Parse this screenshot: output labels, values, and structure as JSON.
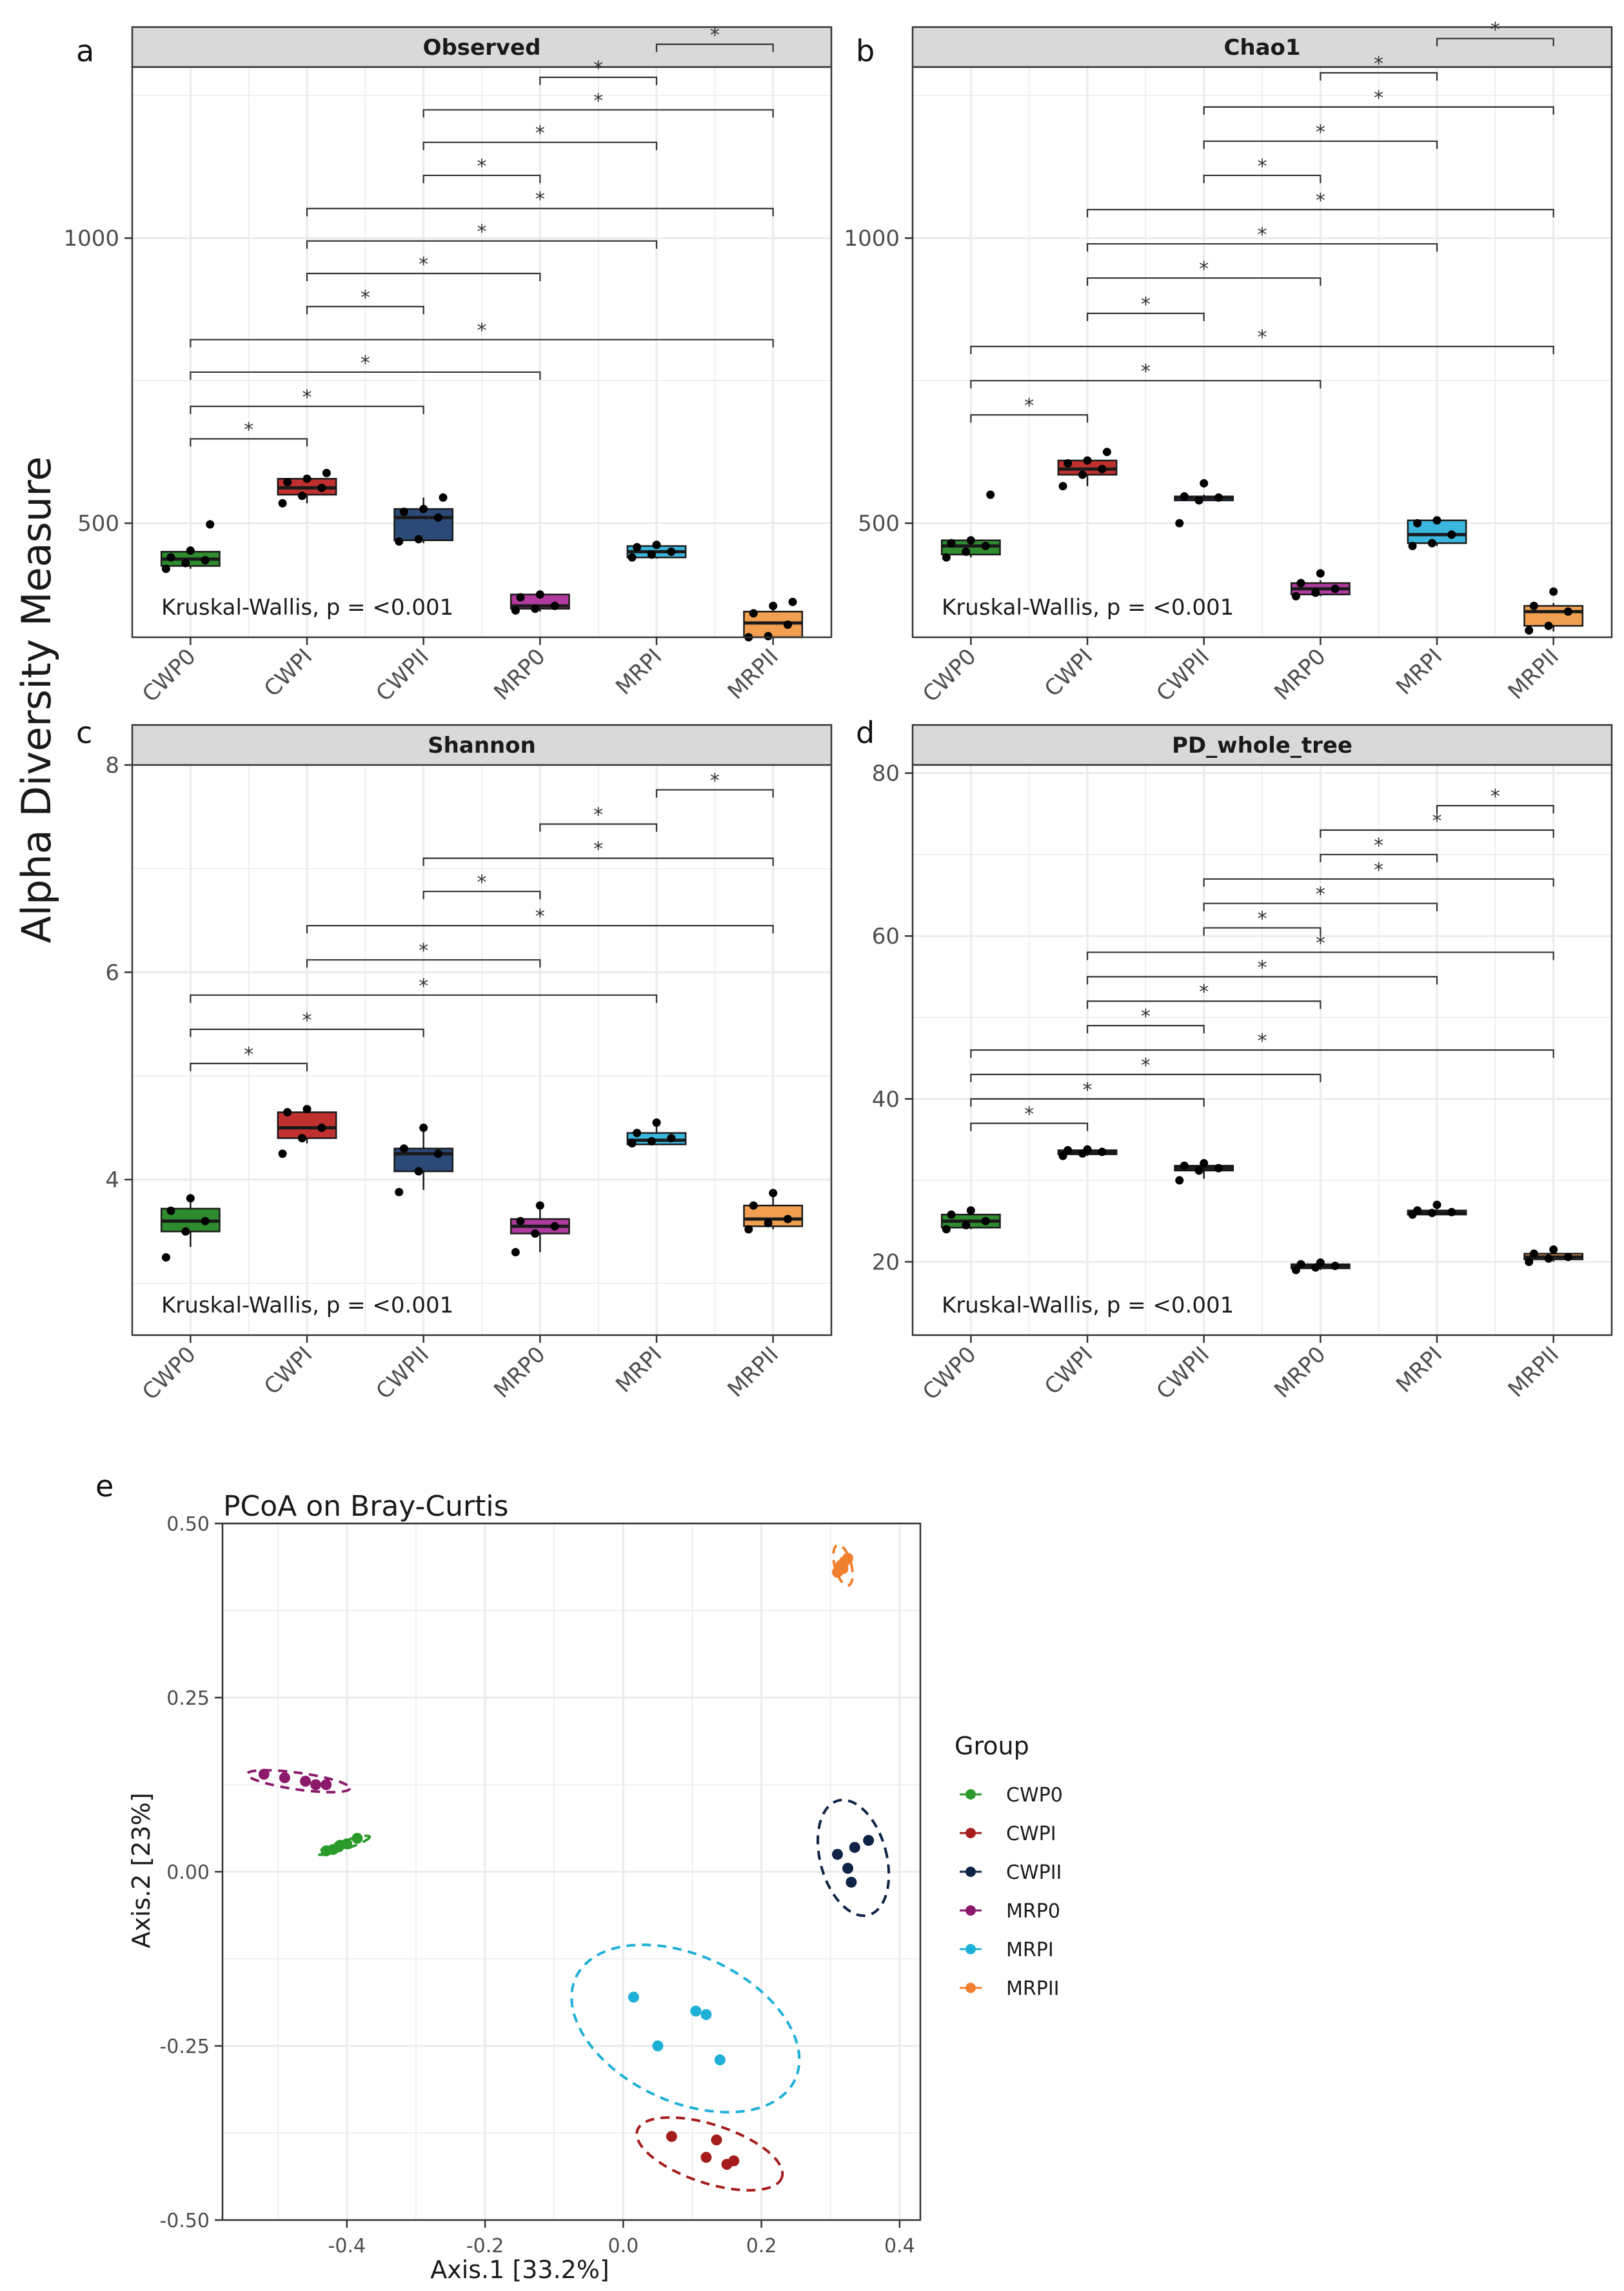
{
  "y_axis_title": "Alpha Diversity Measure",
  "groups": [
    "CWP0",
    "CWPI",
    "CWPII",
    "MRP0",
    "MRPI",
    "MRPII"
  ],
  "colors": {
    "CWP0": "#2e8b2e",
    "CWPI": "#c0302f",
    "CWPII": "#2c4a78",
    "MRP0": "#b03a9e",
    "MRPI": "#3bb6dd",
    "MRPII": "#f0a050",
    "CWPII_points": "#0f2346",
    "MRP0_points": "#8b1a6b",
    "CWPI_points": "#a51c1c",
    "CWP0_points": "#2a9a2a",
    "MRPI_points": "#1fb0d8",
    "MRPII_points": "#f07f2e",
    "strip_bg": "#d9d9d9",
    "grid": "#ebebeb"
  },
  "chart_data": [
    {
      "type": "box",
      "panel_letter": "a",
      "title": "Observed",
      "annotation": "Kruskal-Wallis, p = <0.001",
      "categories": [
        "CWP0",
        "CWPI",
        "CWPII",
        "MRP0",
        "MRPI",
        "MRPII"
      ],
      "ylim": [
        300,
        1300
      ],
      "yticks": [
        500,
        1000
      ],
      "boxes": [
        {
          "group": "CWP0",
          "q1": 425,
          "median": 437,
          "q3": 450,
          "min": 420,
          "max": 455,
          "points": [
            420,
            430,
            435,
            440,
            452,
            498
          ]
        },
        {
          "group": "CWPI",
          "q1": 550,
          "median": 562,
          "q3": 578,
          "min": 535,
          "max": 580,
          "points": [
            535,
            548,
            562,
            572,
            578,
            588
          ]
        },
        {
          "group": "CWPII",
          "q1": 470,
          "median": 510,
          "q3": 525,
          "min": 465,
          "max": 545,
          "points": [
            468,
            472,
            510,
            520,
            525,
            545
          ]
        },
        {
          "group": "MRP0",
          "q1": 350,
          "median": 355,
          "q3": 375,
          "min": 345,
          "max": 377,
          "points": [
            347,
            350,
            355,
            370,
            375
          ]
        },
        {
          "group": "MRPI",
          "q1": 440,
          "median": 450,
          "q3": 460,
          "min": 438,
          "max": 462,
          "points": [
            440,
            445,
            450,
            458,
            462
          ]
        },
        {
          "group": "MRPII",
          "q1": 300,
          "median": 325,
          "q3": 345,
          "min": 300,
          "max": 362,
          "points": [
            300,
            302,
            322,
            342,
            355,
            362
          ]
        }
      ],
      "brackets": [
        {
          "from": 0,
          "to": 1,
          "y": 648,
          "label": "*"
        },
        {
          "from": 0,
          "to": 2,
          "y": 705,
          "label": "*"
        },
        {
          "from": 0,
          "to": 3,
          "y": 765,
          "label": "*"
        },
        {
          "from": 0,
          "to": 5,
          "y": 822,
          "label": "*"
        },
        {
          "from": 1,
          "to": 2,
          "y": 880,
          "label": "*"
        },
        {
          "from": 1,
          "to": 3,
          "y": 938,
          "label": "*"
        },
        {
          "from": 1,
          "to": 4,
          "y": 995,
          "label": "*"
        },
        {
          "from": 1,
          "to": 5,
          "y": 1052,
          "label": "*"
        },
        {
          "from": 2,
          "to": 3,
          "y": 1110,
          "label": "*"
        },
        {
          "from": 2,
          "to": 4,
          "y": 1168,
          "label": "*"
        },
        {
          "from": 2,
          "to": 5,
          "y": 1225,
          "label": "*"
        },
        {
          "from": 3,
          "to": 4,
          "y": 1282,
          "label": "*"
        },
        {
          "from": 4,
          "to": 5,
          "y": 1340,
          "label": "*"
        }
      ]
    },
    {
      "type": "box",
      "panel_letter": "b",
      "title": "Chao1",
      "annotation": "Kruskal-Wallis, p = <0.001",
      "categories": [
        "CWP0",
        "CWPI",
        "CWPII",
        "MRP0",
        "MRPI",
        "MRPII"
      ],
      "ylim": [
        300,
        1300
      ],
      "yticks": [
        500,
        1000
      ],
      "boxes": [
        {
          "group": "CWP0",
          "q1": 445,
          "median": 460,
          "q3": 470,
          "min": 440,
          "max": 475,
          "points": [
            440,
            450,
            460,
            465,
            470,
            550
          ]
        },
        {
          "group": "CWPI",
          "q1": 585,
          "median": 595,
          "q3": 610,
          "min": 565,
          "max": 615,
          "points": [
            565,
            585,
            595,
            605,
            610,
            625
          ]
        },
        {
          "group": "CWPII",
          "q1": 540,
          "median": 545,
          "q3": 547,
          "min": 540,
          "max": 550,
          "points": [
            500,
            540,
            545,
            547,
            570
          ]
        },
        {
          "group": "MRP0",
          "q1": 375,
          "median": 385,
          "q3": 395,
          "min": 372,
          "max": 400,
          "points": [
            372,
            378,
            385,
            395,
            412
          ]
        },
        {
          "group": "MRPI",
          "q1": 465,
          "median": 480,
          "q3": 505,
          "min": 460,
          "max": 505,
          "points": [
            460,
            465,
            480,
            500,
            505
          ]
        },
        {
          "group": "MRPII",
          "q1": 320,
          "median": 345,
          "q3": 355,
          "min": 310,
          "max": 360,
          "points": [
            312,
            320,
            345,
            355,
            380
          ]
        }
      ],
      "brackets": [
        {
          "from": 0,
          "to": 1,
          "y": 690,
          "label": "*"
        },
        {
          "from": 0,
          "to": 3,
          "y": 750,
          "label": "*"
        },
        {
          "from": 0,
          "to": 5,
          "y": 810,
          "label": "*"
        },
        {
          "from": 1,
          "to": 2,
          "y": 868,
          "label": "*"
        },
        {
          "from": 1,
          "to": 3,
          "y": 930,
          "label": "*"
        },
        {
          "from": 1,
          "to": 4,
          "y": 990,
          "label": "*"
        },
        {
          "from": 1,
          "to": 5,
          "y": 1050,
          "label": "*"
        },
        {
          "from": 2,
          "to": 3,
          "y": 1110,
          "label": "*"
        },
        {
          "from": 2,
          "to": 4,
          "y": 1170,
          "label": "*"
        },
        {
          "from": 2,
          "to": 5,
          "y": 1230,
          "label": "*"
        },
        {
          "from": 3,
          "to": 4,
          "y": 1290,
          "label": "*"
        },
        {
          "from": 4,
          "to": 5,
          "y": 1350,
          "label": "*"
        }
      ]
    },
    {
      "type": "box",
      "panel_letter": "c",
      "title": "Shannon",
      "annotation": "Kruskal-Wallis, p = <0.001",
      "categories": [
        "CWP0",
        "CWPI",
        "CWPII",
        "MRP0",
        "MRPI",
        "MRPII"
      ],
      "ylim": [
        2.5,
        8
      ],
      "yticks": [
        4,
        6,
        8
      ],
      "boxes": [
        {
          "group": "CWP0",
          "q1": 3.5,
          "median": 3.6,
          "q3": 3.72,
          "min": 3.35,
          "max": 3.8,
          "points": [
            3.25,
            3.5,
            3.6,
            3.7,
            3.82
          ]
        },
        {
          "group": "CWPI",
          "q1": 4.4,
          "median": 4.5,
          "q3": 4.65,
          "min": 4.35,
          "max": 4.68,
          "points": [
            4.25,
            4.4,
            4.5,
            4.65,
            4.68
          ]
        },
        {
          "group": "CWPII",
          "q1": 4.08,
          "median": 4.25,
          "q3": 4.3,
          "min": 3.9,
          "max": 4.5,
          "points": [
            3.88,
            4.08,
            4.25,
            4.3,
            4.5
          ]
        },
        {
          "group": "MRP0",
          "q1": 3.48,
          "median": 3.55,
          "q3": 3.62,
          "min": 3.3,
          "max": 3.72,
          "points": [
            3.3,
            3.48,
            3.55,
            3.6,
            3.75
          ]
        },
        {
          "group": "MRPI",
          "q1": 4.34,
          "median": 4.38,
          "q3": 4.45,
          "min": 4.34,
          "max": 4.52,
          "points": [
            4.35,
            4.37,
            4.4,
            4.45,
            4.55
          ]
        },
        {
          "group": "MRPII",
          "q1": 3.55,
          "median": 3.62,
          "q3": 3.75,
          "min": 3.52,
          "max": 3.85,
          "points": [
            3.52,
            3.58,
            3.62,
            3.75,
            3.87
          ]
        }
      ],
      "brackets": [
        {
          "from": 0,
          "to": 1,
          "y": 5.12,
          "label": "*"
        },
        {
          "from": 0,
          "to": 2,
          "y": 5.45,
          "label": "*"
        },
        {
          "from": 0,
          "to": 4,
          "y": 5.78,
          "label": "*"
        },
        {
          "from": 1,
          "to": 3,
          "y": 6.12,
          "label": "*"
        },
        {
          "from": 1,
          "to": 5,
          "y": 6.45,
          "label": "*"
        },
        {
          "from": 2,
          "to": 3,
          "y": 6.78,
          "label": "*"
        },
        {
          "from": 2,
          "to": 5,
          "y": 7.1,
          "label": "*"
        },
        {
          "from": 3,
          "to": 4,
          "y": 7.43,
          "label": "*"
        },
        {
          "from": 4,
          "to": 5,
          "y": 7.76,
          "label": "*"
        }
      ]
    },
    {
      "type": "box",
      "panel_letter": "d",
      "title": "PD_whole_tree",
      "annotation": "Kruskal-Wallis, p = <0.001",
      "categories": [
        "CWP0",
        "CWPI",
        "CWPII",
        "MRP0",
        "MRPI",
        "MRPII"
      ],
      "ylim": [
        11,
        81
      ],
      "yticks": [
        20,
        40,
        60,
        80
      ],
      "boxes": [
        {
          "group": "CWP0",
          "q1": 24.2,
          "median": 25,
          "q3": 25.8,
          "min": 24,
          "max": 26.2,
          "points": [
            24,
            24.5,
            25,
            25.8,
            26.3
          ]
        },
        {
          "group": "CWPI",
          "q1": 33.2,
          "median": 33.5,
          "q3": 33.7,
          "min": 33,
          "max": 33.8,
          "points": [
            33,
            33.3,
            33.5,
            33.7,
            33.8
          ]
        },
        {
          "group": "CWPII",
          "q1": 31.2,
          "median": 31.5,
          "q3": 31.8,
          "min": 30.2,
          "max": 32,
          "points": [
            30,
            31.2,
            31.5,
            31.8,
            32.1
          ]
        },
        {
          "group": "MRP0",
          "q1": 19.2,
          "median": 19.5,
          "q3": 19.7,
          "min": 19,
          "max": 19.9,
          "points": [
            19,
            19.3,
            19.5,
            19.7,
            19.9
          ]
        },
        {
          "group": "MRPI",
          "q1": 25.8,
          "median": 26,
          "q3": 26.3,
          "min": 25.8,
          "max": 26.6,
          "points": [
            25.8,
            26,
            26.1,
            26.3,
            27
          ]
        },
        {
          "group": "MRPII",
          "q1": 20.3,
          "median": 20.6,
          "q3": 21,
          "min": 20,
          "max": 21.2,
          "points": [
            20,
            20.4,
            20.6,
            21,
            21.5
          ]
        }
      ],
      "brackets": [
        {
          "from": 0,
          "to": 1,
          "y": 37,
          "label": "*"
        },
        {
          "from": 0,
          "to": 2,
          "y": 40,
          "label": "*"
        },
        {
          "from": 0,
          "to": 3,
          "y": 43,
          "label": "*"
        },
        {
          "from": 0,
          "to": 5,
          "y": 46,
          "label": "*"
        },
        {
          "from": 1,
          "to": 2,
          "y": 49,
          "label": "*"
        },
        {
          "from": 1,
          "to": 3,
          "y": 52,
          "label": "*"
        },
        {
          "from": 1,
          "to": 4,
          "y": 55,
          "label": "*"
        },
        {
          "from": 1,
          "to": 5,
          "y": 58,
          "label": "*"
        },
        {
          "from": 2,
          "to": 3,
          "y": 61,
          "label": "*"
        },
        {
          "from": 2,
          "to": 4,
          "y": 64,
          "label": "*"
        },
        {
          "from": 2,
          "to": 5,
          "y": 67,
          "label": "*"
        },
        {
          "from": 3,
          "to": 4,
          "y": 70,
          "label": "*"
        },
        {
          "from": 3,
          "to": 5,
          "y": 73,
          "label": "*"
        },
        {
          "from": 4,
          "to": 5,
          "y": 76,
          "label": "*"
        }
      ]
    },
    {
      "type": "scatter",
      "panel_letter": "e",
      "title": "PCoA on Bray-Curtis",
      "xlabel": "Axis.1   [33.2%]",
      "ylabel": "Axis.2   [23%]",
      "xlim": [
        -0.58,
        0.43
      ],
      "ylim": [
        -0.5,
        0.5
      ],
      "xticks": [
        -0.4,
        -0.2,
        0.0,
        0.2,
        0.4
      ],
      "xtick_labels": [
        "-0.4",
        "-0.2",
        "0.0",
        "0.2",
        "0.4"
      ],
      "yticks": [
        -0.5,
        -0.25,
        0.0,
        0.25,
        0.5
      ],
      "ytick_labels": [
        "-0.50",
        "-0.25",
        "0.00",
        "0.25",
        "0.50"
      ],
      "legend_title": "Group",
      "legend_position": "right",
      "series": [
        {
          "name": "CWP0",
          "color_key": "CWP0_points",
          "points": [
            [
              -0.42,
              0.032
            ],
            [
              -0.41,
              0.038
            ],
            [
              -0.385,
              0.048
            ],
            [
              -0.4,
              0.04
            ],
            [
              -0.43,
              0.03
            ]
          ],
          "ellipse": {
            "cx": -0.405,
            "cy": 0.038,
            "rx": 0.04,
            "ry": 0.006,
            "angle": 18
          }
        },
        {
          "name": "CWPI",
          "color_key": "CWPI_points",
          "points": [
            [
              0.07,
              -0.38
            ],
            [
              0.12,
              -0.41
            ],
            [
              0.135,
              -0.385
            ],
            [
              0.15,
              -0.42
            ],
            [
              0.16,
              -0.415
            ]
          ],
          "ellipse": {
            "cx": 0.125,
            "cy": -0.405,
            "rx": 0.11,
            "ry": 0.042,
            "angle": -18
          }
        },
        {
          "name": "CWPII",
          "color_key": "CWPII_points",
          "points": [
            [
              0.31,
              0.025
            ],
            [
              0.335,
              0.035
            ],
            [
              0.355,
              0.045
            ],
            [
              0.325,
              0.005
            ],
            [
              0.33,
              -0.015
            ]
          ],
          "ellipse": {
            "cx": 0.333,
            "cy": 0.02,
            "rx": 0.048,
            "ry": 0.085,
            "angle": 15
          }
        },
        {
          "name": "MRP0",
          "color_key": "MRP0_points",
          "points": [
            [
              -0.52,
              0.14
            ],
            [
              -0.49,
              0.135
            ],
            [
              -0.46,
              0.13
            ],
            [
              -0.445,
              0.125
            ],
            [
              -0.43,
              0.125
            ]
          ],
          "ellipse": {
            "cx": -0.47,
            "cy": 0.13,
            "rx": 0.075,
            "ry": 0.012,
            "angle": -8
          }
        },
        {
          "name": "MRPI",
          "color_key": "MRPI_points",
          "points": [
            [
              0.015,
              -0.18
            ],
            [
              0.05,
              -0.25
            ],
            [
              0.105,
              -0.2
            ],
            [
              0.12,
              -0.205
            ],
            [
              0.14,
              -0.27
            ]
          ],
          "ellipse": {
            "cx": 0.09,
            "cy": -0.225,
            "rx": 0.175,
            "ry": 0.105,
            "angle": -25
          }
        },
        {
          "name": "MRPII",
          "color_key": "MRPII_points",
          "points": [
            [
              0.31,
              0.43
            ],
            [
              0.315,
              0.44
            ],
            [
              0.32,
              0.445
            ],
            [
              0.325,
              0.45
            ],
            [
              0.318,
              0.435
            ]
          ],
          "ellipse": {
            "cx": 0.318,
            "cy": 0.44,
            "rx": 0.012,
            "ry": 0.03,
            "angle": 15
          }
        }
      ]
    }
  ]
}
